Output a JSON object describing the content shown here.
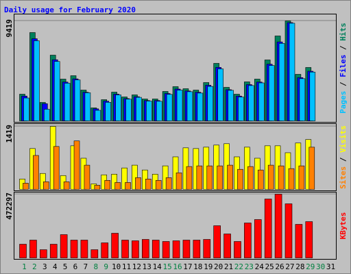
{
  "chart_data": {
    "type": "bar",
    "title": "Daily usage for February 2020",
    "categories": [
      "1",
      "2",
      "3",
      "4",
      "5",
      "6",
      "7",
      "8",
      "9",
      "10",
      "11",
      "12",
      "13",
      "14",
      "15",
      "16",
      "17",
      "18",
      "19",
      "20",
      "21",
      "22",
      "23",
      "24",
      "25",
      "26",
      "27",
      "28",
      "29",
      "30",
      "31"
    ],
    "category_colors": [
      "#008040",
      "#008040",
      "#000000",
      "#000000",
      "#000000",
      "#000000",
      "#000000",
      "#008040",
      "#008040",
      "#000000",
      "#000000",
      "#000000",
      "#000000",
      "#000000",
      "#008040",
      "#008040",
      "#000000",
      "#000000",
      "#000000",
      "#000000",
      "#000000",
      "#008040",
      "#008040",
      "#000000",
      "#000000",
      "#000000",
      "#000000",
      "#000000",
      "#008040",
      "#008040",
      "#000000"
    ],
    "legend_separator": " / ",
    "panels": [
      {
        "ylim": [
          0,
          9419
        ],
        "yticks": [
          9419
        ],
        "series": [
          {
            "name": "Hits",
            "color": "#00805C",
            "values": [
              2516,
              8322,
              1742,
              6193,
              3935,
              4258,
              2903,
              1226,
              2000,
              2710,
              2258,
              2452,
              2065,
              2065,
              2774,
              3226,
              3032,
              2903,
              3613,
              5419,
              3161,
              2516,
              3677,
              3935,
              5742,
              8000,
              9419,
              4387,
              5032,
              null,
              null
            ]
          },
          {
            "name": "Files",
            "color": "#0000FF",
            "values": [
              2340,
              7740,
              1620,
              5760,
              3660,
              3960,
              2700,
              1140,
              1860,
              2520,
              2100,
              2280,
              1920,
              1920,
              2580,
              3000,
              2820,
              2700,
              3360,
              5040,
              2940,
              2340,
              3420,
              3660,
              5340,
              7440,
              9260,
              4080,
              4680,
              null,
              null
            ]
          },
          {
            "name": "Pages",
            "color": "#00C0FF",
            "values": [
              2160,
              7550,
              1100,
              5600,
              3550,
              3860,
              2650,
              1000,
              1750,
              2450,
              2050,
              2220,
              1870,
              1850,
              2500,
              2900,
              2750,
              2620,
              3250,
              4900,
              2880,
              2250,
              3330,
              3580,
              5220,
              7300,
              9200,
              3980,
              4600,
              null,
              null
            ]
          }
        ]
      },
      {
        "ylim": [
          0,
          1419
        ],
        "yticks": [
          1419
        ],
        "series": [
          {
            "name": "Visits",
            "color": "#FFFF00",
            "values": [
              234,
              920,
              359,
              1419,
              312,
              982,
              702,
              125,
              328,
              343,
              483,
              546,
              437,
              343,
              530,
              733,
              936,
              920,
              951,
              998,
              1029,
              733,
              951,
              702,
              982,
              982,
              826,
              1045,
              1123,
              null,
              null
            ]
          },
          {
            "name": "Sites",
            "color": "#FF8000",
            "values": [
              140,
              764,
              172,
              967,
              172,
              1092,
              546,
              94,
              203,
              156,
              156,
              265,
              234,
              203,
              265,
              374,
              515,
              530,
              530,
              530,
              546,
              452,
              515,
              437,
              546,
              530,
              468,
              530,
              951,
              null,
              null
            ]
          }
        ]
      },
      {
        "ylim": [
          0,
          472297
        ],
        "yticks": [
          472297
        ],
        "series": [
          {
            "name": "KBytes",
            "color": "#FF0000",
            "values": [
              101570,
              132040,
              60940,
              101570,
              172670,
              132040,
              132040,
              60940,
              111730,
              182830,
              132040,
              126960,
              137120,
              132040,
              121880,
              126960,
              132040,
              132040,
              137120,
              238690,
              177750,
              121880,
              259000,
              284390,
              436750,
              472297,
              401200,
              248840,
              269160,
              null,
              null
            ]
          }
        ]
      }
    ]
  }
}
